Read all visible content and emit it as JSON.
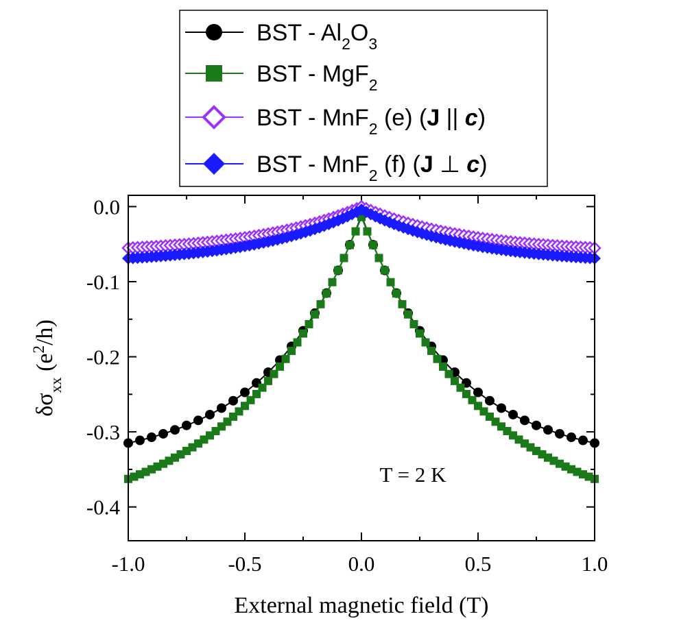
{
  "chart_data": {
    "type": "line",
    "xlabel": "External magnetic field (T)",
    "ylabel_main": "δσ",
    "ylabel_sub": "xx",
    "ylabel_unit_pre": " (e",
    "ylabel_unit_sup": "2",
    "ylabel_unit_post": "/h)",
    "xlim": [
      -1.0,
      1.0
    ],
    "ylim": [
      -0.445,
      0.015
    ],
    "xticks": [
      -1.0,
      -0.5,
      0.0,
      0.5,
      1.0
    ],
    "xtick_labels": [
      "-1.0",
      "-0.5",
      "0.0",
      "0.5",
      "1.0"
    ],
    "yticks": [
      0.0,
      -0.1,
      -0.2,
      -0.3,
      -0.4
    ],
    "ytick_labels": [
      "0.0",
      "-0.1",
      "-0.2",
      "-0.3",
      "-0.4"
    ],
    "annotation": "T = 2 K",
    "legend_position": "above plot, centered",
    "series": [
      {
        "name": "BST - Al2O3",
        "legend_parts": [
          "BST - Al",
          "2",
          "O",
          "3"
        ],
        "color": "#000000",
        "marker": "circle",
        "model": {
          "peak": -0.012,
          "depth": 0.33,
          "k": 2.5,
          "step": 0.05
        }
      },
      {
        "name": "BST - MgF2",
        "legend_parts": [
          "BST - MgF",
          "2"
        ],
        "color": "#1a7a1a",
        "marker": "square",
        "model": {
          "peak": -0.014,
          "depth": 0.41,
          "k": 1.9,
          "step": 0.025
        }
      },
      {
        "name": "BST - MnF2 (e) (J || c)",
        "legend_parts": [
          "BST - MnF",
          "2",
          " (e) (",
          "J",
          " || ",
          "c",
          ")"
        ],
        "color": "#9b30ff",
        "marker": "diamond-open",
        "model": {
          "peak": 0.0,
          "depth": 0.062,
          "k": 2.2,
          "step": 0.02
        }
      },
      {
        "name": "BST - MnF2 (f) (J ⊥ c)",
        "legend_parts": [
          "BST - MnF",
          "2",
          " (f) (",
          "J",
          " ⊥ ",
          "c",
          ")"
        ],
        "color": "#1a1aff",
        "marker": "diamond-filled",
        "model": {
          "peak": -0.004,
          "depth": 0.073,
          "k": 2.2,
          "step": 0.02
        }
      }
    ]
  }
}
